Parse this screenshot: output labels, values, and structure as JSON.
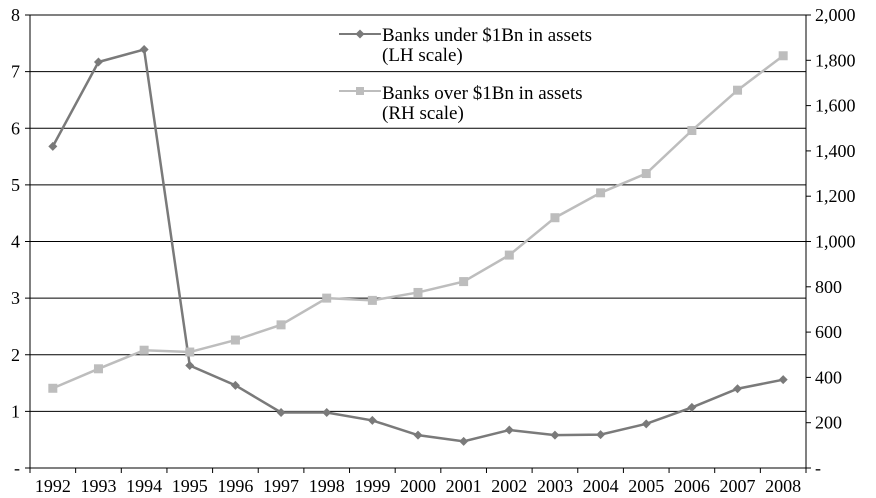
{
  "chart_data": {
    "type": "line",
    "title": "",
    "x": [
      "1992",
      "1993",
      "1994",
      "1995",
      "1996",
      "1997",
      "1998",
      "1999",
      "2000",
      "2001",
      "2002",
      "2003",
      "2004",
      "2005",
      "2006",
      "2007",
      "2008"
    ],
    "series": [
      {
        "name_lines": [
          "Banks under $1Bn in assets",
          "(LH scale)"
        ],
        "axis": "left",
        "color": "#7a7a7a",
        "marker": "diamond",
        "values": [
          5.68,
          7.17,
          7.39,
          1.81,
          1.46,
          0.98,
          0.98,
          0.84,
          0.58,
          0.47,
          0.67,
          0.58,
          0.59,
          0.78,
          1.07,
          1.4,
          1.56
        ]
      },
      {
        "name_lines": [
          "Banks over $1Bn in assets",
          "(RH scale)"
        ],
        "axis": "right",
        "color": "#bdbdbd",
        "marker": "square",
        "values": [
          352,
          438,
          520,
          512,
          565,
          632,
          750,
          740,
          775,
          823,
          940,
          1105,
          1215,
          1300,
          1490,
          1668,
          1820
        ]
      }
    ],
    "y_left": {
      "min": 0,
      "max": 8,
      "ticks": [
        "-",
        "1",
        "2",
        "3",
        "4",
        "5",
        "6",
        "7",
        "8"
      ]
    },
    "y_right": {
      "min": 0,
      "max": 2000,
      "ticks": [
        "-",
        "200",
        "400",
        "600",
        "800",
        "1,000",
        "1,200",
        "1,400",
        "1,600",
        "1,800",
        "2,000"
      ]
    },
    "grid": "horizontal",
    "legend_position": "top-center"
  }
}
